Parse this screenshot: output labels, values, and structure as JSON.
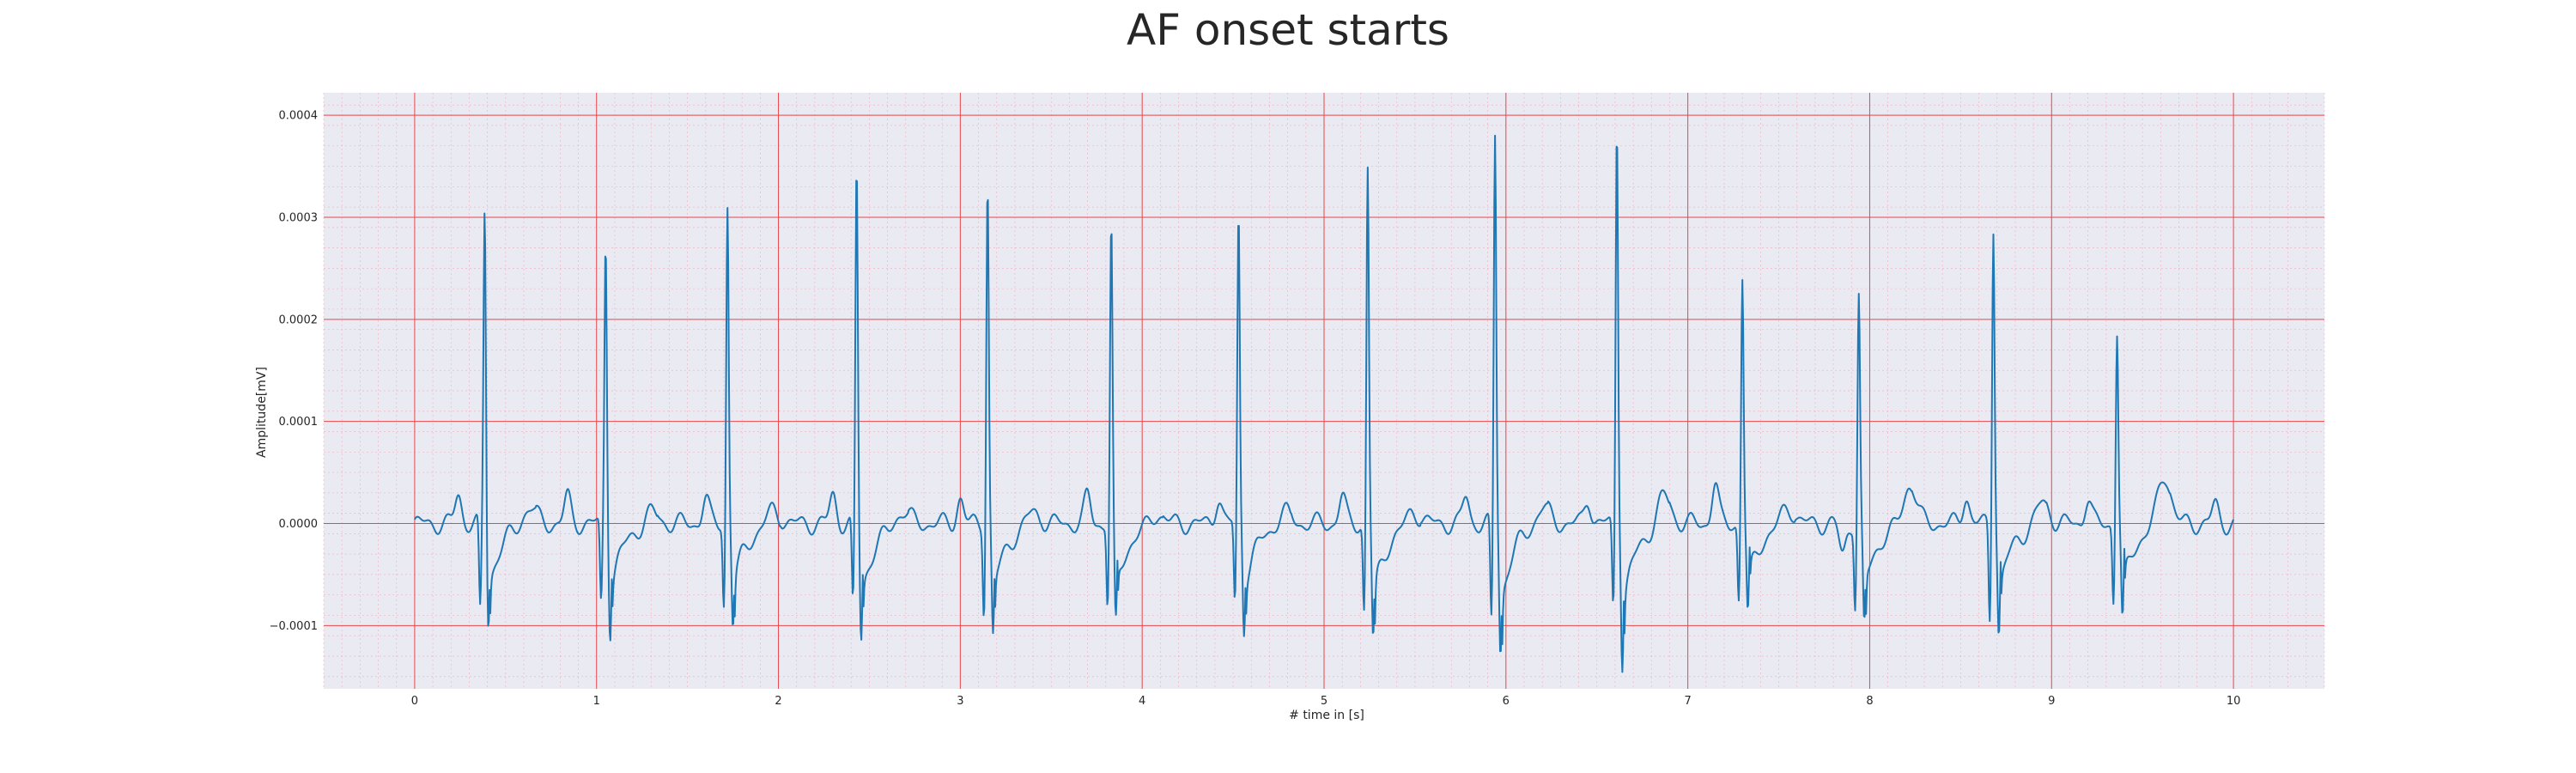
{
  "chart_data": {
    "type": "line",
    "title": "AF onset starts",
    "xlabel": "# time in [s]",
    "ylabel": "Amplitude[mV]",
    "xlim": [
      -0.5,
      10.5
    ],
    "ylim": [
      -0.000162,
      0.000422
    ],
    "xticks": [
      0,
      1,
      2,
      3,
      4,
      5,
      6,
      7,
      8,
      9,
      10
    ],
    "xtick_labels": [
      "0",
      "1",
      "2",
      "3",
      "4",
      "5",
      "6",
      "7",
      "8",
      "9",
      "10"
    ],
    "yticks": [
      -0.0001,
      0.0,
      0.0001,
      0.0002,
      0.0003,
      0.0004
    ],
    "ytick_labels": [
      "−0.0001",
      "0.0000",
      "0.0001",
      "0.0002",
      "0.0003",
      "0.0004"
    ],
    "grid": true,
    "minor_grid": true,
    "background_color": "#eaeaf2",
    "major_grid_color": "#e8474a",
    "minor_grid_color": "#f4a8b8",
    "series": [
      {
        "color": "#1f77b4",
        "sample_rate_hz": 250,
        "duration_s": 10,
        "r_peaks": [
          {
            "t": 0.385,
            "amp": 0.000309
          },
          {
            "t": 1.05,
            "amp": 0.000278
          },
          {
            "t": 1.72,
            "amp": 0.000312
          },
          {
            "t": 2.43,
            "amp": 0.000349
          },
          {
            "t": 3.15,
            "amp": 0.000336
          },
          {
            "t": 3.83,
            "amp": 0.000291
          },
          {
            "t": 4.53,
            "amp": 0.000304
          },
          {
            "t": 5.24,
            "amp": 0.000349
          },
          {
            "t": 5.94,
            "amp": 0.000381
          },
          {
            "t": 6.61,
            "amp": 0.000394
          },
          {
            "t": 7.3,
            "amp": 0.000242
          },
          {
            "t": 7.94,
            "amp": 0.000222
          },
          {
            "t": 8.68,
            "amp": 0.000294
          },
          {
            "t": 9.36,
            "amp": 0.000189
          }
        ],
        "s_troughs": [
          {
            "t": 0.405,
            "amp": -0.000102
          },
          {
            "t": 1.075,
            "amp": -0.000105
          },
          {
            "t": 1.75,
            "amp": -0.0001
          },
          {
            "t": 2.455,
            "amp": -0.000115
          },
          {
            "t": 3.18,
            "amp": -0.000111
          },
          {
            "t": 3.855,
            "amp": -0.000101
          },
          {
            "t": 4.56,
            "amp": -0.000102
          },
          {
            "t": 5.27,
            "amp": -0.000115
          },
          {
            "t": 5.97,
            "amp": -0.000127
          },
          {
            "t": 6.64,
            "amp": -0.000137
          },
          {
            "t": 7.33,
            "amp": -9e-05
          },
          {
            "t": 7.97,
            "amp": -0.000103
          },
          {
            "t": 8.71,
            "amp": -0.000108
          },
          {
            "t": 9.39,
            "amp": -9.8e-05
          }
        ],
        "q_dips": [
          {
            "t": 0.36,
            "amp": -8.8e-05
          },
          {
            "t": 1.025,
            "amp": -8e-05
          },
          {
            "t": 1.7,
            "amp": -8e-05
          },
          {
            "t": 2.41,
            "amp": -8.3e-05
          },
          {
            "t": 3.13,
            "amp": -8.5e-05
          },
          {
            "t": 3.81,
            "amp": -8e-05
          },
          {
            "t": 4.51,
            "amp": -8e-05
          },
          {
            "t": 5.22,
            "amp": -8.7e-05
          },
          {
            "t": 5.92,
            "amp": -0.0001
          },
          {
            "t": 6.59,
            "amp": -8.5e-05
          },
          {
            "t": 7.28,
            "amp": -7.5e-05
          },
          {
            "t": 7.92,
            "amp": -8e-05
          },
          {
            "t": 8.66,
            "amp": -9.5e-05
          },
          {
            "t": 9.34,
            "amp": -7.5e-05
          }
        ],
        "t_waves": [
          {
            "t": 0.63,
            "amp": 1.8e-05
          },
          {
            "t": 1.3,
            "amp": 1.3e-05
          },
          {
            "t": 1.97,
            "amp": 1.5e-05
          },
          {
            "t": 2.68,
            "amp": 1.5e-05
          },
          {
            "t": 3.4,
            "amp": 1.4e-05
          },
          {
            "t": 4.08,
            "amp": 1.2e-05
          },
          {
            "t": 4.78,
            "amp": 1.3e-05
          },
          {
            "t": 5.49,
            "amp": 1.5e-05
          },
          {
            "t": 6.2,
            "amp": 1.8e-05
          },
          {
            "t": 6.87,
            "amp": 3e-05
          },
          {
            "t": 7.55,
            "amp": 1.8e-05
          },
          {
            "t": 8.22,
            "amp": 4e-05
          },
          {
            "t": 8.95,
            "amp": 2.2e-05
          },
          {
            "t": 9.62,
            "amp": 5e-05
          }
        ],
        "fibrillatory_waves": [
          {
            "t": 0.24,
            "amp": 2.8e-05
          },
          {
            "t": 0.84,
            "amp": 2.6e-05
          },
          {
            "t": 1.6,
            "amp": 2.5e-05
          },
          {
            "t": 2.3,
            "amp": 2.8e-05
          },
          {
            "t": 3.0,
            "amp": 2.5e-05
          },
          {
            "t": 3.7,
            "amp": 2.7e-05
          },
          {
            "t": 4.42,
            "amp": 2.6e-05
          },
          {
            "t": 5.1,
            "amp": 2.7e-05
          },
          {
            "t": 5.78,
            "amp": 2.6e-05
          },
          {
            "t": 6.45,
            "amp": 2.5e-05
          },
          {
            "t": 7.15,
            "amp": 4e-05
          },
          {
            "t": 7.85,
            "amp": -3e-05
          },
          {
            "t": 8.53,
            "amp": 2.8e-05
          },
          {
            "t": 9.2,
            "amp": 2.5e-05
          },
          {
            "t": 9.9,
            "amp": 1.8e-05
          }
        ]
      }
    ]
  }
}
